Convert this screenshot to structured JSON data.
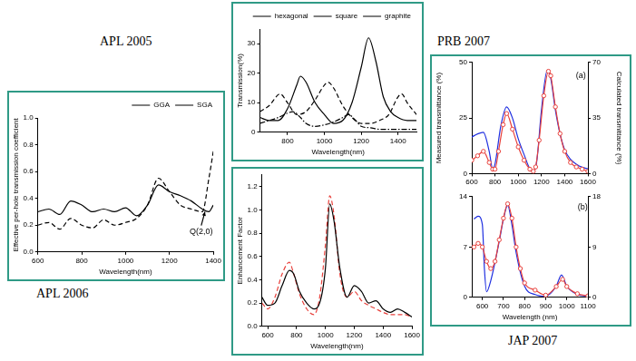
{
  "chart_data": [
    {
      "type": "line",
      "caption": "APL 2005",
      "xlabel": "Wavelength(nm)",
      "ylabel": "Transmission(%)",
      "xlim": [
        650,
        1500
      ],
      "xticks": [
        800,
        1000,
        1200,
        1400
      ],
      "ylim": [
        0,
        35
      ],
      "yticks": [
        0,
        10,
        20,
        30
      ],
      "grid": false,
      "legend": "top-right",
      "series": [
        {
          "name": "hexagonal",
          "color": "#000000",
          "line_style": "solid",
          "marker": "none",
          "x": [
            650,
            700,
            750,
            800,
            850,
            870,
            900,
            950,
            1000,
            1050,
            1100,
            1150,
            1200,
            1240,
            1280,
            1320,
            1360,
            1400,
            1450,
            1500
          ],
          "values": [
            5,
            4,
            4,
            8,
            16,
            19,
            17,
            10,
            6,
            3,
            4,
            10,
            22,
            32,
            24,
            12,
            7,
            5,
            4,
            4
          ]
        },
        {
          "name": "square",
          "color": "#000000",
          "line_style": "dashed",
          "marker": "none",
          "x": [
            650,
            700,
            760,
            800,
            850,
            900,
            950,
            1000,
            1020,
            1050,
            1100,
            1150,
            1200,
            1250,
            1300,
            1350,
            1400,
            1420,
            1450,
            1500
          ],
          "values": [
            7,
            9,
            13,
            10,
            6,
            7,
            11,
            16,
            17,
            15,
            9,
            5,
            3,
            3,
            4,
            6,
            12,
            13,
            10,
            6
          ]
        },
        {
          "name": "graphite",
          "color": "#000000",
          "line_style": "dashdot",
          "marker": "none",
          "x": [
            650,
            700,
            750,
            800,
            830,
            870,
            900,
            950,
            1000,
            1050,
            1100,
            1130,
            1170,
            1200,
            1250,
            1300,
            1400,
            1500
          ],
          "values": [
            3,
            4,
            5,
            6.5,
            7,
            5,
            3,
            2,
            2.5,
            3.5,
            5,
            6,
            4,
            2,
            1.5,
            1,
            1,
            1
          ]
        }
      ]
    },
    {
      "type": "line",
      "caption": "APL 2006",
      "xlabel": "Wavelength(nm)",
      "ylabel": "Effective per-hole transmission coefficient",
      "xlim": [
        600,
        1400
      ],
      "xticks": [
        600,
        800,
        1000,
        1200,
        1400
      ],
      "ylim": [
        0,
        1
      ],
      "yticks": [
        {
          "value": 0,
          "label": "0.0"
        },
        0.2,
        0.4,
        0.6,
        0.8,
        {
          "value": 1,
          "label": "1.0"
        }
      ],
      "grid": false,
      "legend": "top-right",
      "annotations": [
        {
          "text": "Q(2,0)",
          "x": 1345,
          "y": 0.15,
          "arrow_x": 1362,
          "arrow_y": 0.3
        }
      ],
      "series": [
        {
          "name": "GGA",
          "color": "#000000",
          "line_style": "solid",
          "marker": "none",
          "x": [
            600,
            650,
            700,
            750,
            800,
            850,
            900,
            950,
            1000,
            1050,
            1100,
            1150,
            1200,
            1250,
            1300,
            1350,
            1380,
            1400
          ],
          "values": [
            0.3,
            0.32,
            0.28,
            0.38,
            0.35,
            0.3,
            0.32,
            0.3,
            0.33,
            0.27,
            0.35,
            0.5,
            0.45,
            0.42,
            0.38,
            0.32,
            0.3,
            0.35
          ]
        },
        {
          "name": "SGA",
          "color": "#000000",
          "line_style": "dashed",
          "marker": "none",
          "x": [
            600,
            650,
            700,
            750,
            800,
            850,
            900,
            950,
            1000,
            1050,
            1100,
            1150,
            1200,
            1250,
            1300,
            1350,
            1380,
            1400
          ],
          "values": [
            0.2,
            0.22,
            0.17,
            0.25,
            0.2,
            0.18,
            0.24,
            0.2,
            0.22,
            0.25,
            0.35,
            0.55,
            0.45,
            0.35,
            0.32,
            0.3,
            0.55,
            0.75
          ]
        }
      ]
    },
    {
      "type": "line",
      "caption": "JAP 2007",
      "xlabel": "Wavelength(nm)",
      "ylabel": "Enhancement Factor",
      "xlim": [
        560,
        1600
      ],
      "xticks": [
        600,
        800,
        1000,
        1200,
        1400,
        1600
      ],
      "ylim": [
        0,
        1.3
      ],
      "yticks": [
        {
          "value": 0,
          "label": "0.0"
        },
        0.2,
        0.4,
        0.6,
        0.8,
        {
          "value": 1,
          "label": "1.0"
        },
        1.2
      ],
      "grid": false,
      "series": [
        {
          "color": "#000000",
          "line_style": "solid",
          "marker": "none",
          "x": [
            560,
            600,
            650,
            700,
            750,
            780,
            820,
            870,
            920,
            960,
            1000,
            1030,
            1060,
            1100,
            1150,
            1200,
            1250,
            1300,
            1350,
            1400,
            1450,
            1500,
            1550,
            1600
          ],
          "values": [
            0.25,
            0.18,
            0.2,
            0.35,
            0.48,
            0.45,
            0.3,
            0.2,
            0.15,
            0.2,
            0.5,
            1.05,
            0.9,
            0.5,
            0.25,
            0.35,
            0.3,
            0.2,
            0.22,
            0.15,
            0.12,
            0.15,
            0.12,
            0.08
          ]
        },
        {
          "color": "#e8413c",
          "line_style": "dashed",
          "marker": "none",
          "x": [
            560,
            600,
            650,
            700,
            750,
            780,
            820,
            870,
            920,
            960,
            1000,
            1030,
            1060,
            1100,
            1150,
            1200,
            1250,
            1300,
            1350,
            1400,
            1450,
            1500,
            1550,
            1600
          ],
          "values": [
            0.2,
            0.15,
            0.25,
            0.45,
            0.55,
            0.45,
            0.28,
            0.15,
            0.1,
            0.25,
            0.7,
            1.12,
            0.95,
            0.45,
            0.25,
            0.3,
            0.22,
            0.18,
            0.15,
            0.12,
            0.1,
            0.1,
            0.1,
            0.08
          ]
        }
      ]
    },
    {
      "type": "line",
      "caption": "PRB 2007",
      "ylabel": "Measured transmittance (%)",
      "y2label": "Calculated transmittance (%)",
      "xlim": [
        600,
        1600
      ],
      "xticks": [
        600,
        800,
        1000,
        1200,
        1400,
        1600
      ],
      "ylim": [
        0,
        50
      ],
      "yticks": [
        0,
        25,
        50
      ],
      "y2lim": [
        0,
        70
      ],
      "y2ticks": [
        0,
        35,
        70
      ],
      "grid": false,
      "annotations": [
        {
          "text": "(a)",
          "x": 1540,
          "y": 44
        }
      ],
      "series": [
        {
          "color": "#e8413c",
          "line_style": "solid",
          "marker": "circle",
          "x": [
            600,
            650,
            700,
            750,
            780,
            800,
            830,
            870,
            900,
            950,
            1000,
            1050,
            1100,
            1130,
            1150,
            1180,
            1220,
            1260,
            1280,
            1320,
            1360,
            1400,
            1450,
            1500,
            1550,
            1600
          ],
          "values": [
            6,
            8,
            10,
            5,
            2,
            2,
            10,
            22,
            27,
            20,
            12,
            6,
            2,
            1,
            3,
            15,
            35,
            46,
            44,
            30,
            18,
            10,
            5,
            3,
            2,
            1
          ]
        },
        {
          "color": "#1f2fe0",
          "line_style": "solid",
          "marker": "none",
          "axis": "y2",
          "x": [
            600,
            650,
            700,
            750,
            780,
            800,
            850,
            900,
            950,
            1000,
            1050,
            1100,
            1130,
            1160,
            1200,
            1250,
            1280,
            1320,
            1360,
            1400,
            1450,
            1500,
            1550,
            1600
          ],
          "values": [
            23,
            25,
            26,
            14,
            3,
            6,
            30,
            42,
            35,
            22,
            12,
            3,
            1,
            8,
            40,
            65,
            60,
            40,
            25,
            15,
            9,
            6,
            4,
            3
          ]
        }
      ]
    },
    {
      "type": "line",
      "xlabel": "Wavelength (nm)",
      "xlim": [
        550,
        1100
      ],
      "xticks": [
        600,
        700,
        800,
        900,
        1000,
        1100
      ],
      "ylim": [
        0,
        14
      ],
      "yticks": [
        0,
        7,
        14
      ],
      "y2lim": [
        0,
        18
      ],
      "y2ticks": [
        0,
        9,
        18
      ],
      "grid": false,
      "annotations": [
        {
          "text": "(b)",
          "x": 1075,
          "y": 12.5
        }
      ],
      "series": [
        {
          "color": "#e8413c",
          "line_style": "solid",
          "marker": "circle",
          "x": [
            560,
            580,
            600,
            620,
            640,
            660,
            680,
            700,
            720,
            740,
            760,
            780,
            800,
            850,
            900,
            950,
            980,
            1000,
            1050,
            1100
          ],
          "values": [
            7,
            7.5,
            7,
            5,
            4,
            5,
            8,
            11,
            13,
            11,
            7,
            4,
            2,
            1,
            0.3,
            1.5,
            2.5,
            1.5,
            0.5,
            0.2
          ]
        },
        {
          "color": "#1f2fe0",
          "line_style": "solid",
          "marker": "none",
          "axis": "y2",
          "x": [
            560,
            580,
            600,
            610,
            620,
            640,
            680,
            700,
            720,
            740,
            760,
            800,
            850,
            900,
            950,
            975,
            1000,
            1050,
            1100
          ],
          "values": [
            14,
            14.5,
            13,
            5,
            1,
            3,
            10,
            14,
            16.5,
            13,
            8,
            2,
            0.5,
            0.2,
            2,
            4,
            2,
            0.5,
            0.2
          ]
        }
      ]
    }
  ]
}
